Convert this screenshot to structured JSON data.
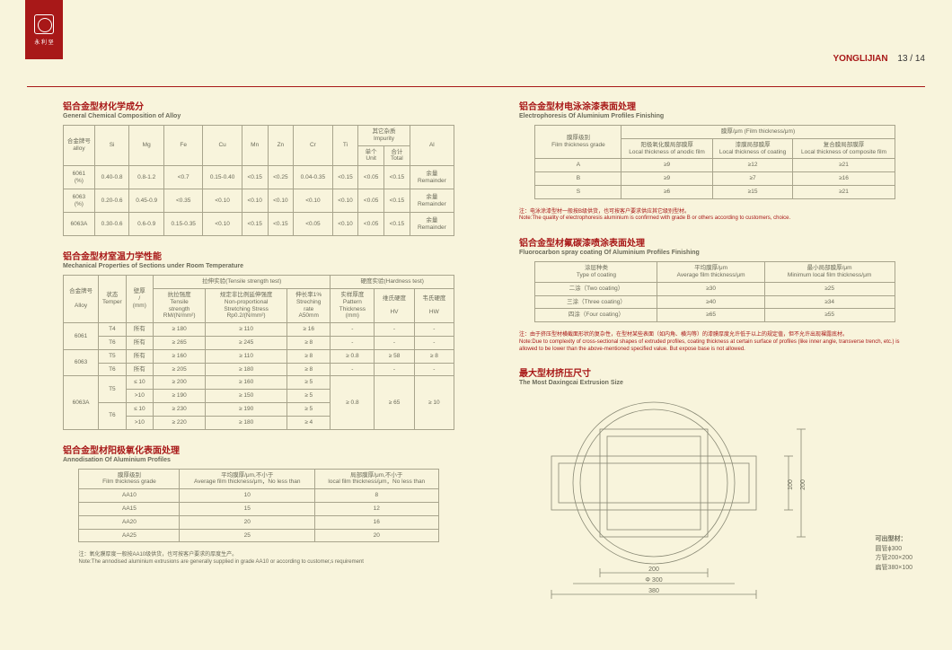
{
  "brand": "YONGLIJIAN",
  "page_number": "13 / 14",
  "logo_text": "永 利 坚",
  "chem": {
    "title_cn": "铝合金型材化学成分",
    "title_en": "General Chemical Composition of Alloy",
    "h_alloy": "合金牌号\nalloy",
    "h_si": "Si",
    "h_mg": "Mg",
    "h_fe": "Fe",
    "h_cu": "Cu",
    "h_mn": "Mn",
    "h_zn": "Zn",
    "h_cr": "Cr",
    "h_ti": "Ti",
    "h_imp": "其它杂质\nImpurity",
    "h_unit": "单个\nUnit",
    "h_total": "合计\nTotal",
    "h_al": "Al",
    "rows": [
      {
        "alloy": "6061\n(%)",
        "si": "0.40-0.8",
        "mg": "0.8-1.2",
        "fe": "<0.7",
        "cu": "0.15-0.40",
        "mn": "<0.15",
        "zn": "<0.25",
        "cr": "0.04-0.35",
        "ti": "<0.15",
        "u": "<0.05",
        "t": "<0.15",
        "al": "余量\nRemainder"
      },
      {
        "alloy": "6063\n(%)",
        "si": "0.20-0.6",
        "mg": "0.45-0.9",
        "fe": "<0.35",
        "cu": "<0.10",
        "mn": "<0.10",
        "zn": "<0.10",
        "cr": "<0.10",
        "ti": "<0.10",
        "u": "<0.05",
        "t": "<0.15",
        "al": "余量\nRemainder"
      },
      {
        "alloy": "6063A",
        "si": "0.30-0.6",
        "mg": "0.6-0.9",
        "fe": "0.15-0.35",
        "cu": "<0.10",
        "mn": "<0.15",
        "zn": "<0.15",
        "cr": "<0.05",
        "ti": "<0.10",
        "u": "<0.05",
        "t": "<0.15",
        "al": "余量\nRemainder"
      }
    ]
  },
  "mech": {
    "title_cn": "铝合金型材室温力学性能",
    "title_en": "Mechanical Properties of Sections under Room Temperature",
    "h_alloy": "合金牌号\n\nAlloy",
    "h_temper": "状态\nTemper",
    "h_thick": "壁厚\n/\n(mm)",
    "h_tensile_group": "拉伸实验(Tensile strength test)",
    "h_hard_group": "硬度实验(Hardness test)",
    "h_rm": "抗拉强度\nTensile\nstrength\nRM/(N/mm²)",
    "h_rp": "规定非比例延伸强度\nNon-proportional\nStretching Stress\nRp0.2/(N/mm²)",
    "h_a50": "伸长率1%\nStreching\nrate\nA50mm",
    "h_pat": "实样厚度\nPattern\nThickness\n(mm)",
    "h_hv": "维氏硬度\n\nHV",
    "h_hw": "韦氏硬度\n\nHW",
    "rows": [
      {
        "alloy": "6061",
        "temper": "T4",
        "thick": "所有",
        "rm": "≥ 180",
        "rp": "≥ 110",
        "a50": "≥ 16",
        "pat": "-",
        "hv": "-",
        "hw": "-"
      },
      {
        "alloy": "6061",
        "temper": "T6",
        "thick": "所有",
        "rm": "≥ 265",
        "rp": "≥ 245",
        "a50": "≥ 8",
        "pat": "-",
        "hv": "-",
        "hw": "-"
      },
      {
        "alloy": "6063",
        "temper": "T5",
        "thick": "所有",
        "rm": "≥ 160",
        "rp": "≥ 110",
        "a50": "≥ 8",
        "pat": "≥ 0.8",
        "hv": "≥ 58",
        "hw": "≥ 8"
      },
      {
        "alloy": "6063",
        "temper": "T6",
        "thick": "所有",
        "rm": "≥ 205",
        "rp": "≥ 180",
        "a50": "≥ 8",
        "pat": "-",
        "hv": "-",
        "hw": "-"
      },
      {
        "alloy": "6063A",
        "temper": "T5",
        "thick": "≤ 10",
        "rm": "≥ 200",
        "rp": "≥ 160",
        "a50": "≥ 5",
        "pat": "≥ 0.8",
        "hv": "≥ 65",
        "hw": "≥ 10"
      },
      {
        "alloy": "6063A",
        "temper": "T5",
        "thick": ">10",
        "rm": "≥ 190",
        "rp": "≥ 150",
        "a50": "≥ 5",
        "pat": "",
        "hv": "",
        "hw": ""
      },
      {
        "alloy": "6063A",
        "temper": "T6",
        "thick": "≤ 10",
        "rm": "≥ 230",
        "rp": "≥ 190",
        "a50": "≥ 5",
        "pat": "",
        "hv": "",
        "hw": ""
      },
      {
        "alloy": "6063A",
        "temper": "T6",
        "thick": ">10",
        "rm": "≥ 220",
        "rp": "≥ 180",
        "a50": "≥ 4",
        "pat": "",
        "hv": "",
        "hw": ""
      }
    ]
  },
  "anod": {
    "title_cn": "铝合金型材阳极氧化表面处理",
    "title_en": "Annodisation Of Aluminium Profiles",
    "h_grade": "膜厚级别\nFilm thickness grade",
    "h_avg": "平均膜厚/μm,不小于\nAverage film thickness/μm，No less than",
    "h_local": "局部膜厚/μm,不小于\nlocal film thickness/μm，No less than",
    "rows": [
      {
        "g": "AA10",
        "a": "10",
        "l": "8"
      },
      {
        "g": "AA15",
        "a": "15",
        "l": "12"
      },
      {
        "g": "AA20",
        "a": "20",
        "l": "16"
      },
      {
        "g": "AA25",
        "a": "25",
        "l": "20"
      }
    ],
    "note": "注：氧化膜厚度一般按AA10级供货，也可按客户要求的厚度生产。\nNote:The annodised aluminium extrusions are generally supplied in grade AA10 or according to customer,s requirement"
  },
  "electro": {
    "title_cn": "铝合金型材电泳涂漆表面处理",
    "title_en": "Electrophoresis Of Aluminium Profiles Finishing",
    "h_grade": "膜厚级别\nFilm thickness grade",
    "h_film": "膜厚/μm (Film thickness/μm)",
    "h_anodic": "阳极氧化膜局部膜厚\nLocal thickness of anodic film",
    "h_coating": "漆膜局部膜厚\nLocal thickness of coating",
    "h_comp": "复合膜局部膜厚\nLocal thickness of composite film",
    "rows": [
      {
        "g": "A",
        "a": "≥9",
        "c": "≥12",
        "p": "≥21"
      },
      {
        "g": "B",
        "a": "≥9",
        "c": "≥7",
        "p": "≥16"
      },
      {
        "g": "S",
        "a": "≥6",
        "c": "≥15",
        "p": "≥21"
      }
    ],
    "note": "注：电泳涂漆型材一般按B级供货，也可按客户要求供应其它级别型材。\nNote:The quality of electrophoresis aluminium is confirmed with grade B or others according to customers, choice."
  },
  "fluoro": {
    "title_cn": "铝合金型材氟碳漆喷涂表面处理",
    "title_en": "Fluorocarbon spray coating Of Aluminium Profiles Finishing",
    "h_type": "涂层种类\nType of coating",
    "h_avg": "平均膜厚/μm\nAverage film thickness/μm",
    "h_min": "最小局部膜厚/μm\nMinimum local film thickness/μm",
    "rows": [
      {
        "t": "二涂（Two coating）",
        "a": "≥30",
        "m": "≥25"
      },
      {
        "t": "三涂（Three coating）",
        "a": "≥40",
        "m": "≥34"
      },
      {
        "t": "四涂（Four coating）",
        "a": "≥65",
        "m": "≥55"
      }
    ],
    "note": "注：由于挤压型材横截面形状的复杂性，在型材某些表面（如内角、横沟等）的漆膜厚度允许低于以上的规定值，但不允许出现裸露底材。\nNote:Due to complexity of cross-sectional shapes of extruded profiles, coating thickness at certain surface of profiles (like inner angle, transverse trench, etc.) is allowed to be lower than the above-mentioned specified value. But expose base is not allowed."
  },
  "extrusion": {
    "title_cn": "最大型材挤压尺寸",
    "title_en": "The Most Daxingcai Extrusion Size",
    "side_title": "可出型材：",
    "side_1": "圆管ϕ300",
    "side_2": "方管200×200",
    "side_3": "扁管380×100",
    "dim_200": "200",
    "dim_300": "Φ 300",
    "dim_380": "380",
    "dim_100": "100",
    "dim_200v": "200"
  }
}
